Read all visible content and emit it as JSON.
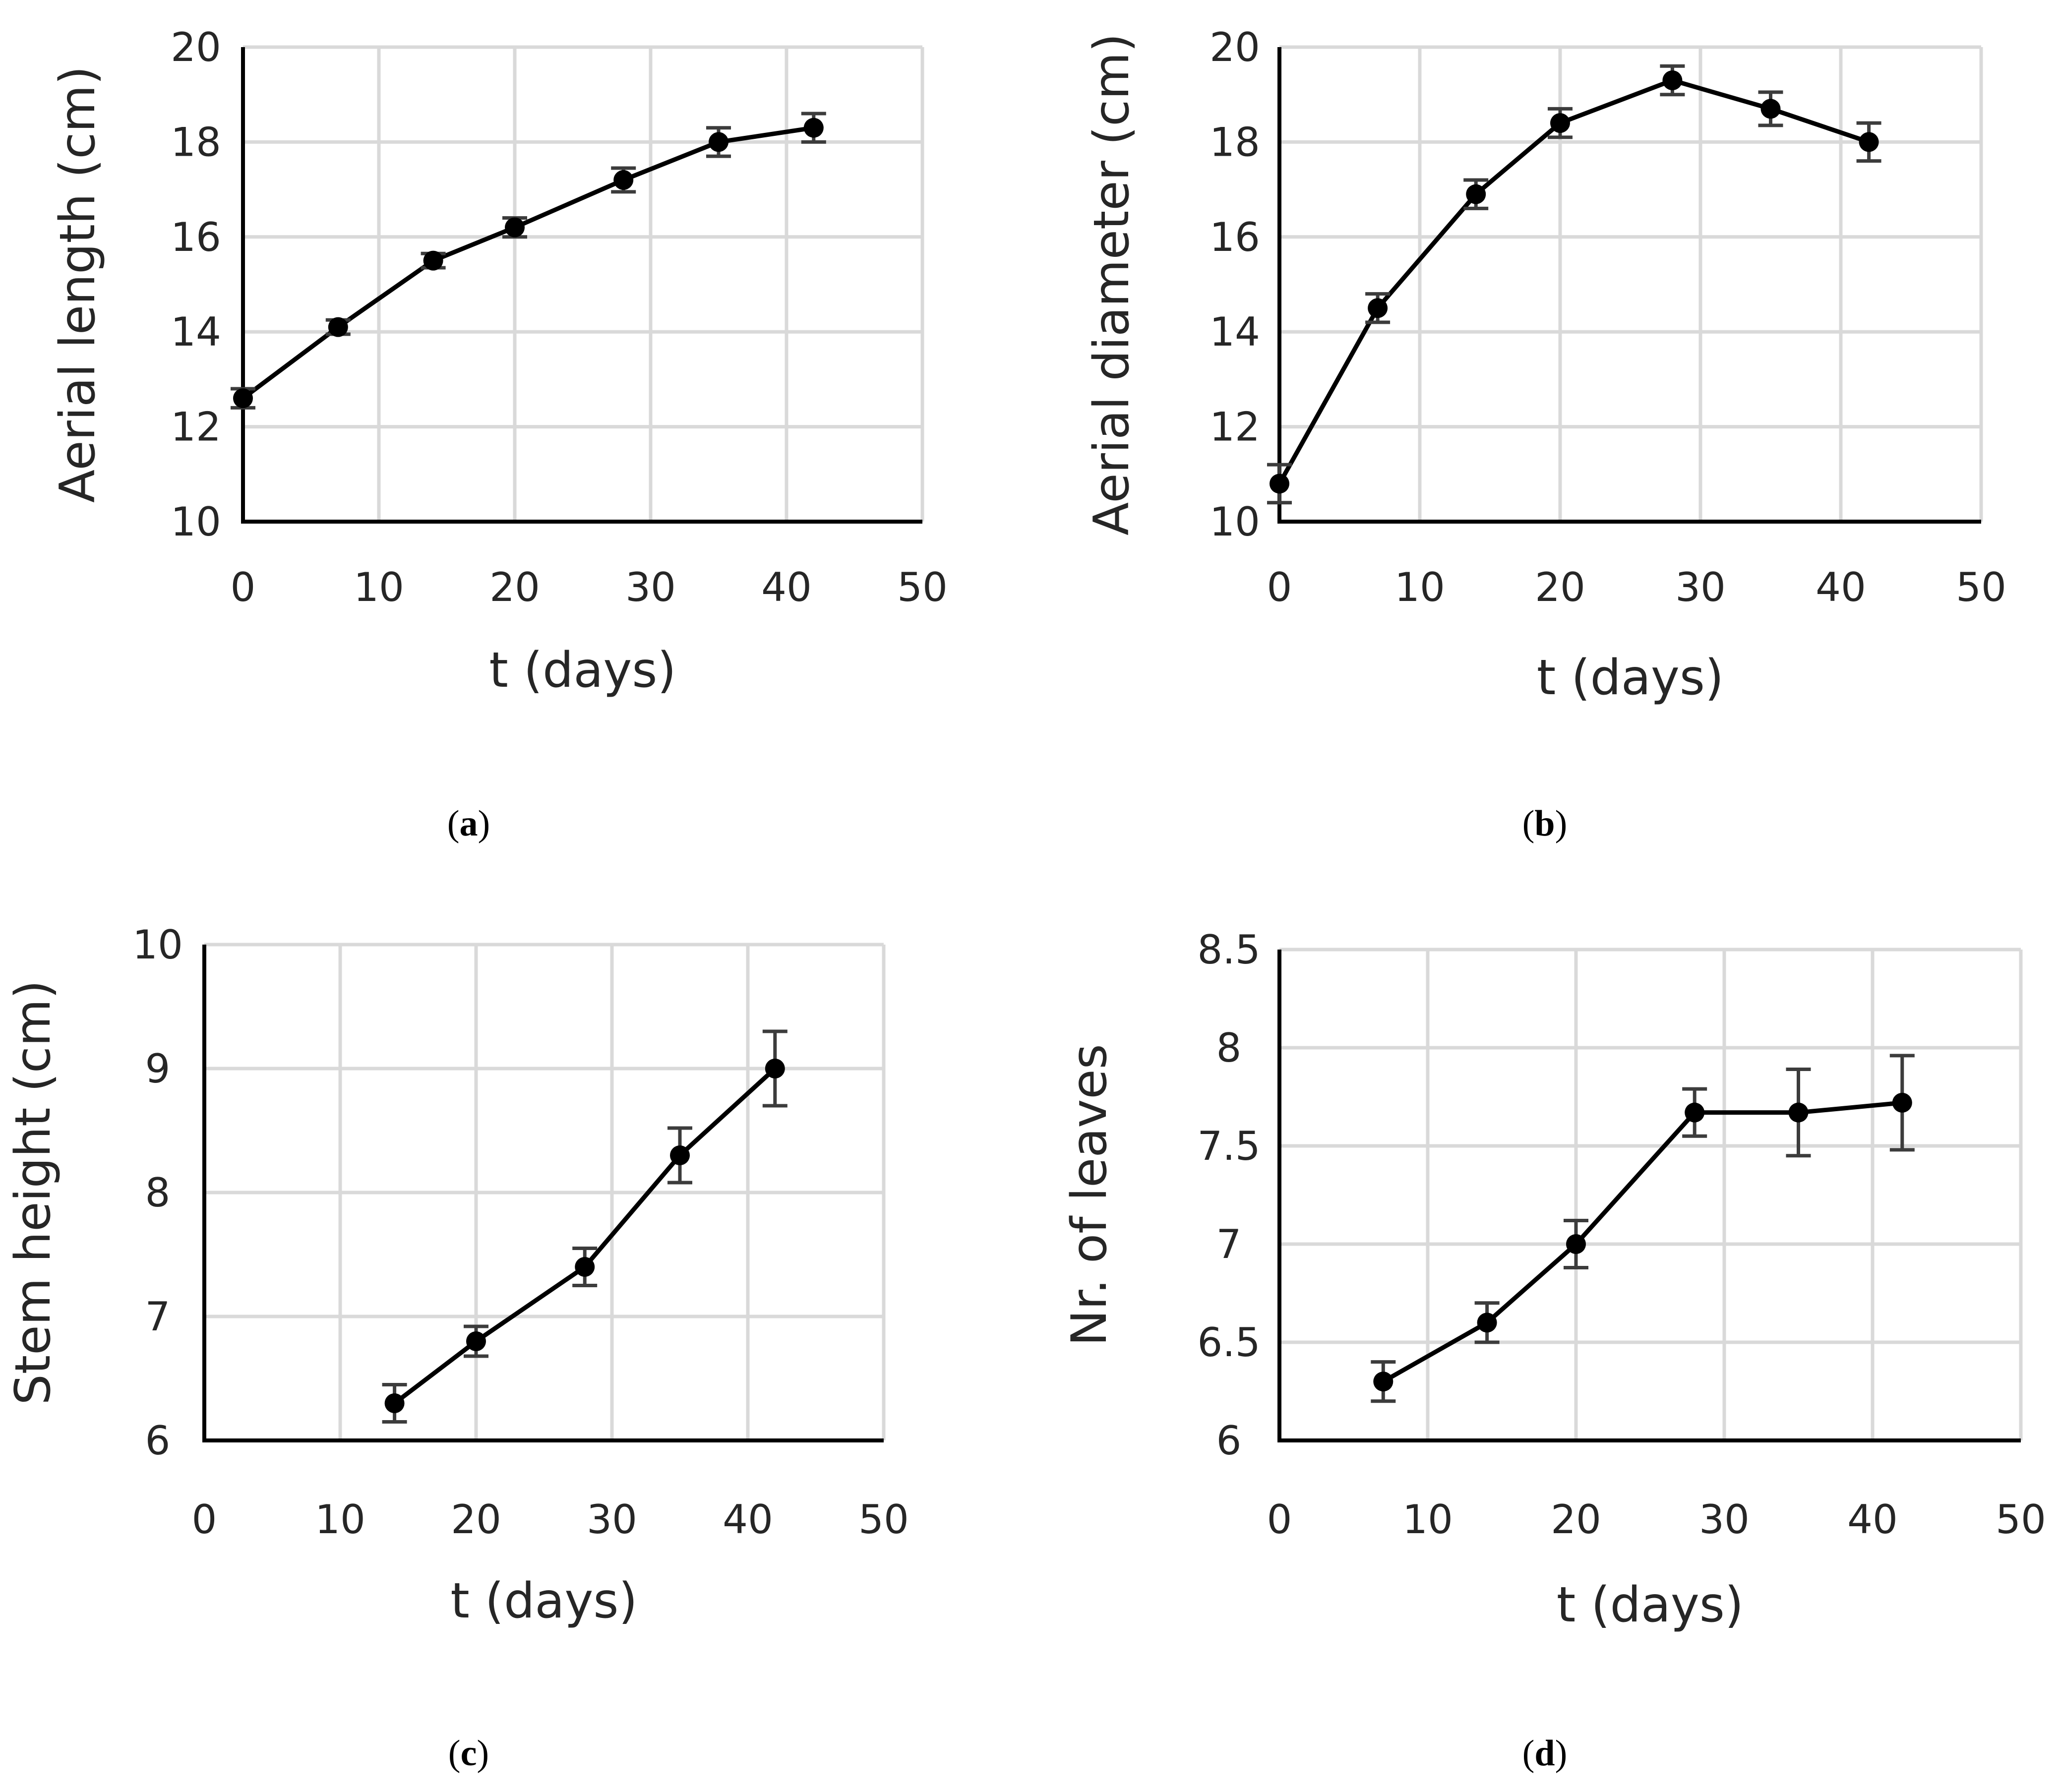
{
  "chart_data": [
    {
      "type": "line",
      "panel": "a",
      "panel_label": "a",
      "xlabel": "t (days)",
      "ylabel": "Aerial length (cm)",
      "xlim": [
        0,
        50
      ],
      "ylim": [
        10,
        20
      ],
      "x_ticks": [
        "0",
        "10",
        "20",
        "30",
        "40",
        "50"
      ],
      "y_ticks": [
        "10",
        "12",
        "14",
        "16",
        "18",
        "20"
      ],
      "grid": true,
      "series": [
        {
          "name": "Aerial length",
          "x": [
            0,
            7,
            14,
            20,
            28,
            35,
            42
          ],
          "values": [
            12.6,
            14.1,
            15.5,
            16.2,
            17.2,
            18.0,
            18.3
          ],
          "error": [
            0.2,
            0.15,
            0.15,
            0.2,
            0.25,
            0.3,
            0.3
          ]
        }
      ]
    },
    {
      "type": "line",
      "panel": "b",
      "panel_label": "b",
      "xlabel": "t (days)",
      "ylabel": "Aerial diameter (cm)",
      "xlim": [
        0,
        50
      ],
      "ylim": [
        10,
        20
      ],
      "x_ticks": [
        "0",
        "10",
        "20",
        "30",
        "40",
        "50"
      ],
      "y_ticks": [
        "10",
        "12",
        "14",
        "16",
        "18",
        "20"
      ],
      "grid": true,
      "series": [
        {
          "name": "Aerial diameter",
          "x": [
            0,
            7,
            14,
            20,
            28,
            35,
            42
          ],
          "values": [
            10.8,
            14.5,
            16.9,
            18.4,
            19.3,
            18.7,
            18.0
          ],
          "error": [
            0.4,
            0.3,
            0.3,
            0.3,
            0.3,
            0.35,
            0.4
          ]
        }
      ]
    },
    {
      "type": "line",
      "panel": "c",
      "panel_label": "c",
      "xlabel": "t (days)",
      "ylabel": "Stem height (cm)",
      "xlim": [
        0,
        50
      ],
      "ylim": [
        6,
        10
      ],
      "x_ticks": [
        "0",
        "10",
        "20",
        "30",
        "40",
        "50"
      ],
      "y_ticks": [
        "6",
        "7",
        "8",
        "9",
        "10"
      ],
      "grid": true,
      "series": [
        {
          "name": "Stem height",
          "x": [
            14,
            20,
            28,
            35,
            42
          ],
          "values": [
            6.3,
            6.8,
            7.4,
            8.3,
            9.0
          ],
          "error": [
            0.15,
            0.12,
            0.15,
            0.22,
            0.3
          ]
        }
      ]
    },
    {
      "type": "line",
      "panel": "d",
      "panel_label": "d",
      "xlabel": "t (days)",
      "ylabel": "Nr. of leaves",
      "xlim": [
        0,
        50
      ],
      "ylim": [
        6,
        8.5
      ],
      "x_ticks": [
        "0",
        "10",
        "20",
        "30",
        "40",
        "50"
      ],
      "y_ticks": [
        "6",
        "6.5",
        "7",
        "7.5",
        "8",
        "8.5"
      ],
      "grid": true,
      "series": [
        {
          "name": "Nr. of leaves",
          "x": [
            7,
            14,
            20,
            28,
            35,
            42
          ],
          "values": [
            6.3,
            6.6,
            7.0,
            7.67,
            7.67,
            7.72
          ],
          "error": [
            0.1,
            0.1,
            0.12,
            0.12,
            0.22,
            0.24
          ]
        }
      ]
    }
  ],
  "colors": {
    "line": "#000000",
    "marker": "#000000",
    "error_bar": "#3c3c3c",
    "grid": "#d9d9d9",
    "axis": "#000000",
    "text": "#262626"
  }
}
